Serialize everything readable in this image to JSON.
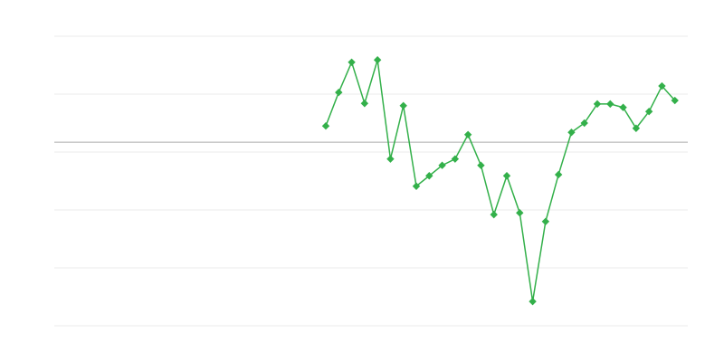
{
  "chart_data": {
    "type": "line",
    "title": "",
    "xlabel": "",
    "ylabel": "",
    "xlim": [
      0,
      49
    ],
    "ylim": [
      0,
      5
    ],
    "grid": true,
    "y_gridlines": [
      0,
      1,
      2,
      3,
      4,
      5
    ],
    "baseline": 3.17,
    "line_color": "#33b04a",
    "grid_color": "#ebebeb",
    "baseline_color": "#aaaaaa",
    "marker": "diamond",
    "x": [
      21,
      22,
      23,
      24,
      25,
      26,
      27,
      28,
      29,
      30,
      31,
      32,
      33,
      34,
      35,
      36,
      37,
      38,
      39,
      40,
      41,
      42,
      43,
      44,
      45,
      46,
      47,
      48
    ],
    "y": [
      3.45,
      4.03,
      4.55,
      3.84,
      4.59,
      2.88,
      3.8,
      2.41,
      2.59,
      2.77,
      2.88,
      3.3,
      2.77,
      1.92,
      2.59,
      1.95,
      0.42,
      1.8,
      2.61,
      3.34,
      3.5,
      3.83,
      3.83,
      3.77,
      3.41,
      3.7,
      4.14,
      3.89
    ]
  }
}
